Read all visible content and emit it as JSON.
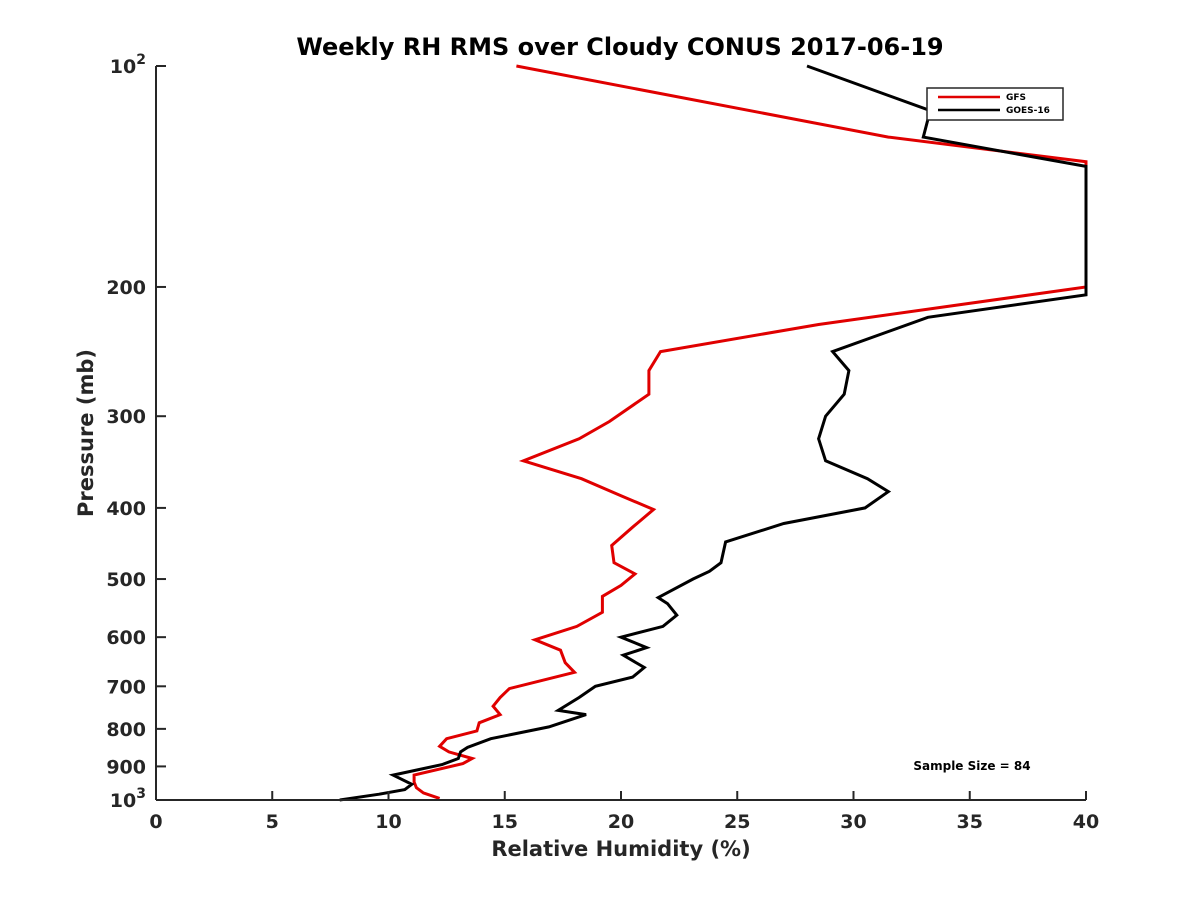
{
  "chart_data": {
    "type": "line",
    "title": "Weekly RH RMS over Cloudy CONUS 2017-06-19",
    "xlabel": "Relative Humidity (%)",
    "ylabel": "Pressure (mb)",
    "xlim": [
      0,
      40
    ],
    "ylim": [
      100,
      1000
    ],
    "y_scale": "log",
    "y_reversed": true,
    "grid": false,
    "legend_position": "top-right",
    "xticks": [
      0,
      5,
      10,
      15,
      20,
      25,
      30,
      35,
      40
    ],
    "yticks": [
      {
        "value": 100,
        "base": "10",
        "exp": "2"
      },
      {
        "value": 200,
        "label": "200"
      },
      {
        "value": 300,
        "label": "300"
      },
      {
        "value": 400,
        "label": "400"
      },
      {
        "value": 500,
        "label": "500"
      },
      {
        "value": 600,
        "label": "600"
      },
      {
        "value": 700,
        "label": "700"
      },
      {
        "value": 800,
        "label": "800"
      },
      {
        "value": 900,
        "label": "900"
      },
      {
        "value": 1000,
        "base": "10",
        "exp": "3"
      }
    ],
    "annotation": "Sample Size = 84",
    "series": [
      {
        "name": "GFS",
        "color": "#e00000",
        "points": [
          [
            15.5,
            100
          ],
          [
            31.5,
            125
          ],
          [
            40,
            135
          ],
          [
            40,
            200
          ],
          [
            28.5,
            225
          ],
          [
            21.7,
            245
          ],
          [
            21.2,
            260
          ],
          [
            21.2,
            280
          ],
          [
            19.5,
            305
          ],
          [
            18.2,
            322
          ],
          [
            15.8,
            345
          ],
          [
            18.3,
            365
          ],
          [
            20,
            385
          ],
          [
            21.4,
            402
          ],
          [
            20.5,
            425
          ],
          [
            19.6,
            450
          ],
          [
            19.7,
            475
          ],
          [
            20.6,
            492
          ],
          [
            20,
            510
          ],
          [
            19.2,
            528
          ],
          [
            19.2,
            555
          ],
          [
            18.1,
            580
          ],
          [
            16.3,
            605
          ],
          [
            17.4,
            625
          ],
          [
            17.6,
            650
          ],
          [
            18,
            670
          ],
          [
            15.2,
            705
          ],
          [
            14.8,
            725
          ],
          [
            14.5,
            745
          ],
          [
            14.8,
            765
          ],
          [
            13.9,
            785
          ],
          [
            13.8,
            805
          ],
          [
            12.5,
            825
          ],
          [
            12.2,
            845
          ],
          [
            12.6,
            860
          ],
          [
            13.6,
            878
          ],
          [
            13.2,
            892
          ],
          [
            11.1,
            925
          ],
          [
            11.1,
            945
          ],
          [
            11.2,
            962
          ],
          [
            11.5,
            978
          ],
          [
            12.2,
            995
          ]
        ]
      },
      {
        "name": "GOES-16",
        "color": "#000000",
        "points": [
          [
            28,
            100
          ],
          [
            33.3,
            115
          ],
          [
            33,
            125
          ],
          [
            40,
            137
          ],
          [
            40,
            205
          ],
          [
            33.2,
            220
          ],
          [
            29.1,
            245
          ],
          [
            29.8,
            260
          ],
          [
            29.6,
            280
          ],
          [
            28.8,
            300
          ],
          [
            28.5,
            322
          ],
          [
            28.8,
            345
          ],
          [
            30.6,
            365
          ],
          [
            31.5,
            380
          ],
          [
            30.5,
            400
          ],
          [
            27,
            420
          ],
          [
            24.5,
            445
          ],
          [
            24.3,
            475
          ],
          [
            23.8,
            488
          ],
          [
            23.1,
            500
          ],
          [
            21.6,
            530
          ],
          [
            22,
            540
          ],
          [
            22.4,
            560
          ],
          [
            21.8,
            580
          ],
          [
            20,
            600
          ],
          [
            21.1,
            620
          ],
          [
            20.1,
            635
          ],
          [
            21,
            660
          ],
          [
            20.5,
            680
          ],
          [
            18.9,
            700
          ],
          [
            18.2,
            725
          ],
          [
            17.3,
            755
          ],
          [
            18.5,
            765
          ],
          [
            16.9,
            795
          ],
          [
            14.4,
            825
          ],
          [
            13.4,
            848
          ],
          [
            13.1,
            860
          ],
          [
            13,
            878
          ],
          [
            12.3,
            895
          ],
          [
            10.2,
            925
          ],
          [
            11,
            952
          ],
          [
            10.7,
            968
          ],
          [
            9.6,
            982
          ],
          [
            7.9,
            1000
          ]
        ]
      }
    ]
  }
}
